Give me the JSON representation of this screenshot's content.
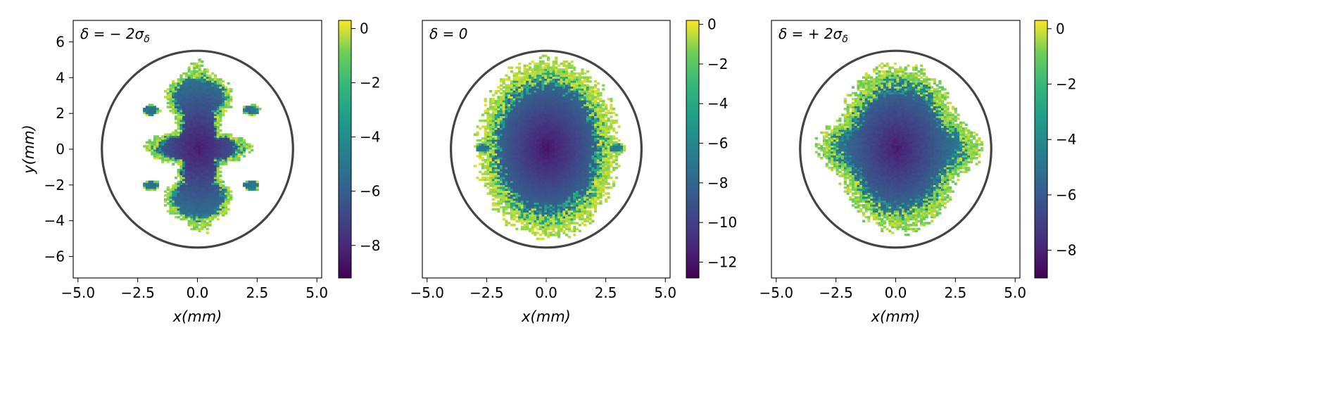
{
  "chart_data": [
    {
      "type": "heatmap",
      "title": "δ = − 2σ_δ",
      "title_parts": {
        "main": "δ = − 2σ",
        "sub": "δ"
      },
      "xlabel": "x(mm)",
      "ylabel": "y(mm)",
      "xlim": [
        -5.2,
        5.2
      ],
      "ylim": [
        -7.2,
        7.2
      ],
      "xticks": [
        -5.0,
        -2.5,
        0.0,
        2.5,
        5.0
      ],
      "xtick_labels": [
        "−5.0",
        "−2.5",
        "0.0",
        "2.5",
        "5.0"
      ],
      "yticks": [
        -6,
        -4,
        -2,
        0,
        2,
        4,
        6
      ],
      "ytick_labels": [
        "−6",
        "−4",
        "−2",
        "0",
        "2",
        "4",
        "6"
      ],
      "colormap": "viridis",
      "colorbar_range": [
        -9.2,
        0.3
      ],
      "colorbar_ticks": [
        0,
        -2,
        -4,
        -6,
        -8
      ],
      "colorbar_tick_labels": [
        "0",
        "−2",
        "−4",
        "−6",
        "−8"
      ],
      "min_value": -9.2,
      "ellipse": {
        "center": [
          0,
          0
        ],
        "semi_x": 4.0,
        "semi_y": 5.5,
        "color": "#444444"
      },
      "distribution": {
        "shape": "cross",
        "lobes": [
          {
            "cx": 0.0,
            "cy": 0.0,
            "rx": 0.9,
            "ry": 4.4
          },
          {
            "cx": 0.0,
            "cy": 0.0,
            "rx": 2.1,
            "ry": 0.9
          },
          {
            "cx": 0.0,
            "cy": 2.8,
            "rx": 1.3,
            "ry": 1.3
          },
          {
            "cx": 0.0,
            "cy": -2.8,
            "rx": 1.3,
            "ry": 1.3
          }
        ],
        "satellites": [
          [
            -2.0,
            2.1
          ],
          [
            2.2,
            2.1
          ],
          [
            -2.0,
            -2.1
          ],
          [
            2.2,
            -2.1
          ]
        ],
        "edge_value": 0.0
      }
    },
    {
      "type": "heatmap",
      "title": "δ = 0",
      "title_parts": {
        "main": "δ = 0",
        "sub": ""
      },
      "xlabel": "x(mm)",
      "ylabel": "",
      "xlim": [
        -5.2,
        5.2
      ],
      "ylim": [
        -7.2,
        7.2
      ],
      "xticks": [
        -5.0,
        -2.5,
        0.0,
        2.5,
        5.0
      ],
      "xtick_labels": [
        "−5.0",
        "−2.5",
        "0.0",
        "2.5",
        "5.0"
      ],
      "yticks": [],
      "ytick_labels": [],
      "colormap": "viridis",
      "colorbar_range": [
        -12.8,
        0.2
      ],
      "colorbar_ticks": [
        0,
        -2,
        -4,
        -6,
        -8,
        -10,
        -12
      ],
      "colorbar_tick_labels": [
        "0",
        "−2",
        "−4",
        "−6",
        "−8",
        "−10",
        "−12"
      ],
      "min_value": -12.8,
      "ellipse": {
        "center": [
          0,
          0
        ],
        "semi_x": 4.0,
        "semi_y": 5.5,
        "color": "#444444"
      },
      "distribution": {
        "shape": "ellipse",
        "lobes": [
          {
            "cx": 0.0,
            "cy": 0.0,
            "rx": 2.7,
            "ry": 4.6
          }
        ],
        "satellites": [
          [
            -2.7,
            0.0
          ],
          [
            2.9,
            0.0
          ]
        ],
        "edge_value": 0.0
      }
    },
    {
      "type": "heatmap",
      "title": "δ = + 2σ_δ",
      "title_parts": {
        "main": "δ = + 2σ",
        "sub": "δ"
      },
      "xlabel": "x(mm)",
      "ylabel": "",
      "xlim": [
        -5.2,
        5.2
      ],
      "ylim": [
        -7.2,
        7.2
      ],
      "xticks": [
        -5.0,
        -2.5,
        0.0,
        2.5,
        5.0
      ],
      "xtick_labels": [
        "−5.0",
        "−2.5",
        "0.0",
        "2.5",
        "5.0"
      ],
      "yticks": [],
      "ytick_labels": [],
      "colormap": "viridis",
      "colorbar_range": [
        -9.0,
        0.3
      ],
      "colorbar_ticks": [
        0,
        -2,
        -4,
        -6,
        -8
      ],
      "colorbar_tick_labels": [
        "0",
        "−2",
        "−4",
        "−6",
        "−8"
      ],
      "min_value": -9.0,
      "ellipse": {
        "center": [
          0,
          0
        ],
        "semi_x": 4.0,
        "semi_y": 5.5,
        "color": "#444444"
      },
      "distribution": {
        "shape": "wide-ellipse",
        "lobes": [
          {
            "cx": 0.1,
            "cy": 0.0,
            "rx": 3.2,
            "ry": 2.0
          },
          {
            "cx": 0.1,
            "cy": 0.0,
            "rx": 2.4,
            "ry": 4.3
          }
        ],
        "satellites": [],
        "edge_value": 0.0
      }
    }
  ]
}
